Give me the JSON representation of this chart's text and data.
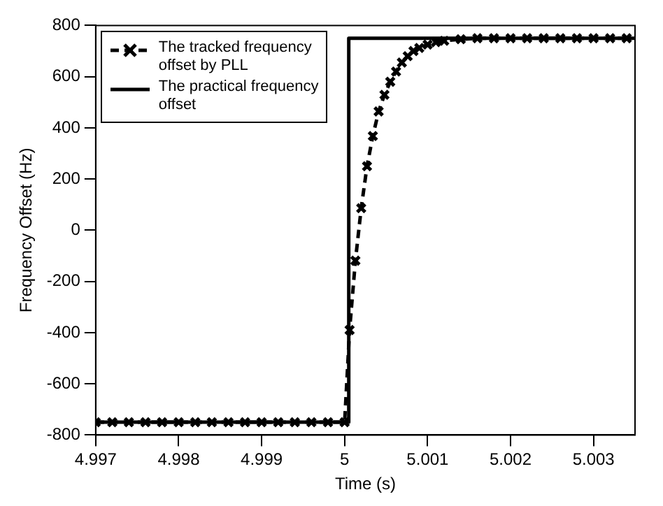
{
  "chart_data": {
    "type": "line",
    "xlabel": "Time (s)",
    "ylabel": "Frequency Offset (Hz)",
    "xlim": [
      4.997,
      5.0035
    ],
    "xticks": [
      4.997,
      4.998,
      4.999,
      5,
      5.001,
      5.002,
      5.003
    ],
    "ylim": [
      -800,
      800
    ],
    "yticks": [
      -800,
      -600,
      -400,
      -200,
      0,
      200,
      400,
      600,
      800
    ],
    "grid": false,
    "legend": "top left",
    "series": [
      {
        "name": "The tracked frequency offset by PLL",
        "color": "#000000",
        "marker": "cross",
        "line_style": "dashed",
        "x": [
          4.997,
          4.9972,
          4.9974,
          4.9976,
          4.9978,
          4.998,
          4.9982,
          4.9984,
          4.9986,
          4.9988,
          4.999,
          4.9992,
          4.9994,
          4.9996,
          4.9998,
          5.0,
          5.00006,
          5.00013,
          5.0002,
          5.00027,
          5.00034,
          5.00041,
          5.00048,
          5.00055,
          5.00062,
          5.00069,
          5.00076,
          5.00083,
          5.0009,
          5.001,
          5.0011,
          5.0012,
          5.0014,
          5.0016,
          5.0018,
          5.002,
          5.0022,
          5.0024,
          5.0026,
          5.0028,
          5.003,
          5.0032,
          5.0034
        ],
        "values": [
          -750,
          -750,
          -750,
          -750,
          -750,
          -750,
          -750,
          -750,
          -750,
          -750,
          -750,
          -750,
          -750,
          -750,
          -750,
          -750,
          -390,
          -119,
          86,
          250,
          368,
          464,
          529,
          580,
          620,
          655,
          680,
          700,
          712,
          725,
          735,
          740,
          746,
          750,
          750,
          750,
          750,
          750,
          750,
          750,
          750,
          750,
          750
        ]
      },
      {
        "name": "The practical frequency offset",
        "color": "#000000",
        "marker": "none",
        "line_style": "solid",
        "x": [
          4.997,
          5.00005,
          5.00005,
          5.0035
        ],
        "values": [
          -750,
          -750,
          750,
          750
        ]
      }
    ]
  }
}
